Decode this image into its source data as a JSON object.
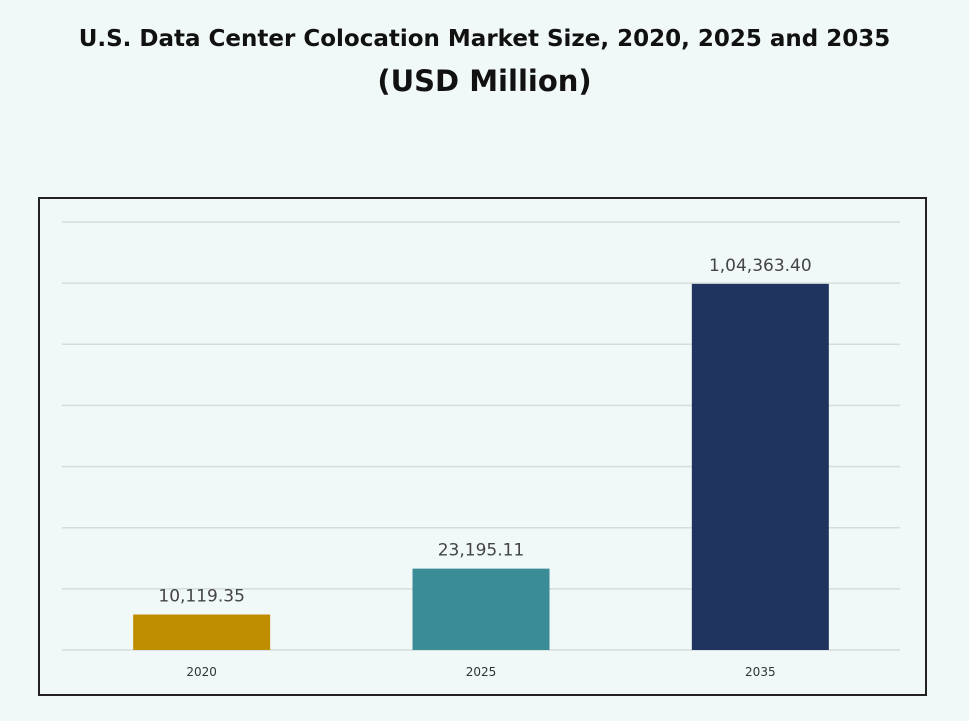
{
  "chart_data": {
    "type": "bar",
    "title": "U.S. Data Center Colocation Market Size, 2020, 2025 and 2035",
    "subtitle": "(USD Million)",
    "categories": [
      "2020",
      "2025",
      "2035"
    ],
    "values": [
      10119.35,
      23195.11,
      104363.4
    ],
    "data_labels": [
      "10,119.35",
      "23,195.11",
      "1,04,363.40"
    ],
    "colors": [
      "#bf8d00",
      "#3a8d96",
      "#1f3560"
    ],
    "xlabel": "",
    "ylabel": "",
    "ylim": [
      0,
      122000
    ],
    "grid": true,
    "legend": "none"
  }
}
